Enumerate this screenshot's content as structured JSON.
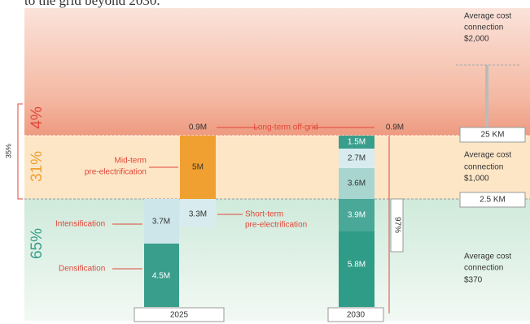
{
  "intro": "to the grid beyond 2030.",
  "shares": [
    "4%",
    "31%",
    "65%"
  ],
  "bracket": "35%",
  "years": [
    "2025",
    "2030"
  ],
  "offgrid": {
    "label": "Long-term off-grid",
    "left": "0.9M",
    "right": "0.9M"
  },
  "mid": {
    "lines": [
      "Mid-term",
      "pre-electrification"
    ],
    "value": "5M"
  },
  "short": {
    "lines": [
      "Short-term",
      "pre-electrification"
    ],
    "value": "3.3M"
  },
  "intensification": {
    "label": "Intensification",
    "value": "3.7M"
  },
  "densification": {
    "label": "Densification",
    "value": "4.5M"
  },
  "bars2030": [
    "1.5M",
    "2.7M",
    "3.6M",
    "3.9M",
    "5.8M"
  ],
  "share2030": "97%",
  "costs": [
    [
      "Average cost",
      "connection",
      "$2,000"
    ],
    [
      "Average cost",
      "connection",
      "$1,000"
    ],
    [
      "Average cost",
      "connection",
      "$370"
    ]
  ],
  "distances": [
    "25 KM",
    "2.5 KM"
  ]
}
